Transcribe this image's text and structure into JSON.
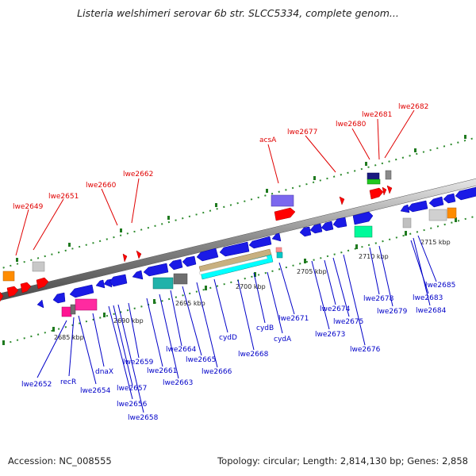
{
  "title": "Listeria welshimeri serovar 6b str. SLCC5334, complete genom...",
  "footer": {
    "accession": "Accession: NC_008555",
    "summary": "Topology: circular; Length: 2,814,130 bp; Genes: 2,858"
  },
  "colors": {
    "forward_label": "#e00000",
    "reverse_label": "#0000c8",
    "backbone": "#808080",
    "tick": "#228b22"
  },
  "ticks": [
    {
      "text": "2685 kbp"
    },
    {
      "text": "2690 kbp"
    },
    {
      "text": "2695 kbp"
    },
    {
      "text": "2700 kbp"
    },
    {
      "text": "2705 kbp"
    },
    {
      "text": "2710 kbp"
    },
    {
      "text": "2715 kbp"
    }
  ],
  "forward_labels": [
    {
      "text": "lwe2649"
    },
    {
      "text": "lwe2651"
    },
    {
      "text": "lwe2660"
    },
    {
      "text": "lwe2662"
    },
    {
      "text": "acsA"
    },
    {
      "text": "lwe2677"
    },
    {
      "text": "lwe2680"
    },
    {
      "text": "lwe2681"
    },
    {
      "text": "lwe2682"
    }
  ],
  "reverse_labels": [
    {
      "text": "lwe2652"
    },
    {
      "text": "recR"
    },
    {
      "text": "lwe2654"
    },
    {
      "text": "dnaX"
    },
    {
      "text": "lwe2656"
    },
    {
      "text": "lwe2657"
    },
    {
      "text": "lwe2658"
    },
    {
      "text": "lwe2659"
    },
    {
      "text": "lwe2661"
    },
    {
      "text": "lwe2663"
    },
    {
      "text": "lwe2664"
    },
    {
      "text": "lwe2665"
    },
    {
      "text": "lwe2666"
    },
    {
      "text": "cydD"
    },
    {
      "text": "lwe2668"
    },
    {
      "text": "cydB"
    },
    {
      "text": "cydA"
    },
    {
      "text": "lwe2671"
    },
    {
      "text": "lwe2673"
    },
    {
      "text": "lwe2674"
    },
    {
      "text": "lwe2675"
    },
    {
      "text": "lwe2676"
    },
    {
      "text": "lwe2678"
    },
    {
      "text": "lwe2679"
    },
    {
      "text": "lwe2683"
    },
    {
      "text": "lwe2684"
    },
    {
      "text": "lwe2685"
    }
  ]
}
